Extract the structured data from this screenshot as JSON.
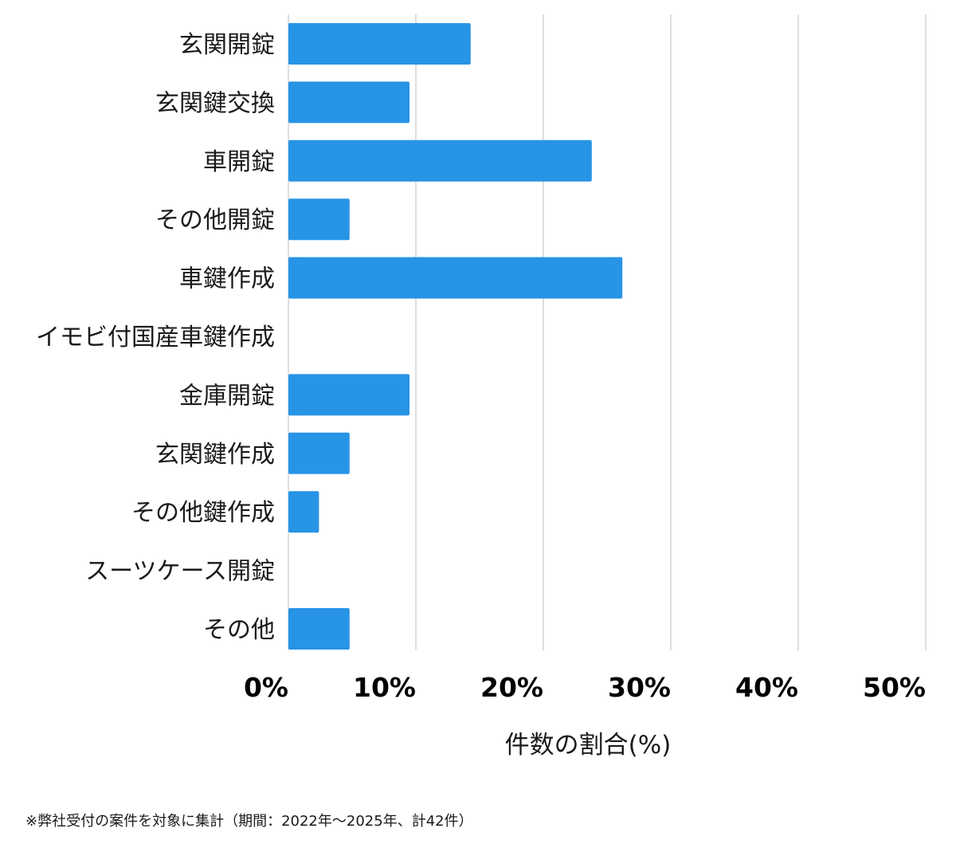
{
  "chart_data": {
    "type": "bar",
    "orientation": "horizontal",
    "categories": [
      "玄関開錠",
      "玄関鍵交換",
      "車開錠",
      "その他開錠",
      "車鍵作成",
      "イモビ付国産車鍵作成",
      "金庫開錠",
      "玄関鍵作成",
      "その他鍵作成",
      "スーツケース開錠",
      "その他"
    ],
    "values": [
      14.3,
      9.5,
      23.8,
      4.8,
      26.2,
      0,
      9.5,
      4.8,
      2.4,
      0,
      4.8
    ],
    "xlabel": "件数の割合(%)",
    "ylabel": "",
    "xlim": [
      0,
      50
    ],
    "ticks": [
      0,
      10,
      20,
      30,
      40,
      50
    ],
    "tick_labels": [
      "0%",
      "10%",
      "20%",
      "30%",
      "40%",
      "50%"
    ],
    "grid": "vertical",
    "bar_color": "#2794e6",
    "grid_color": "#d3d3d3"
  },
  "footnote": "※弊社受付の案件を対象に集計（期間：2022年〜2025年、計42件）"
}
